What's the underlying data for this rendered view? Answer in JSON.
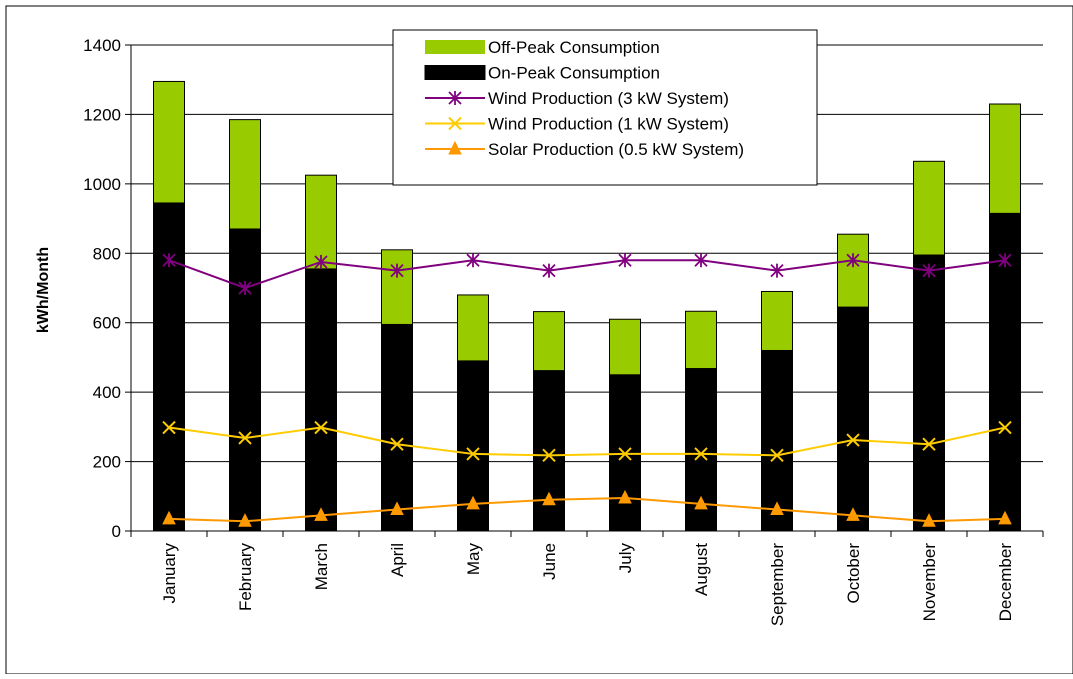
{
  "chart_data": {
    "type": "bar",
    "stacked": true,
    "title": "",
    "xlabel": "",
    "ylabel": "kWh/Month",
    "ylim": [
      0,
      1400
    ],
    "yticks": [
      0,
      200,
      400,
      600,
      800,
      1000,
      1200,
      1400
    ],
    "grid": "horizontal",
    "legend_position": "top-center",
    "categories": [
      "January",
      "February",
      "March",
      "April",
      "May",
      "June",
      "July",
      "August",
      "September",
      "October",
      "November",
      "December"
    ],
    "series": [
      {
        "name": "Off-Peak Consumption",
        "kind": "bar-stacked",
        "color": "#99cc00",
        "values": [
          350,
          315,
          270,
          215,
          190,
          170,
          160,
          165,
          170,
          210,
          270,
          315
        ]
      },
      {
        "name": "On-Peak Consumption",
        "kind": "bar-stacked",
        "color": "#000000",
        "values": [
          945,
          870,
          755,
          595,
          490,
          462,
          450,
          468,
          520,
          645,
          795,
          915
        ]
      },
      {
        "name": "Wind Production (3 kW System)",
        "kind": "line",
        "marker": "asterisk",
        "color": "#800080",
        "values": [
          780,
          700,
          775,
          750,
          780,
          750,
          780,
          780,
          750,
          780,
          750,
          780
        ]
      },
      {
        "name": "Wind Production (1 kW System)",
        "kind": "line",
        "marker": "x",
        "color": "#ffcc00",
        "values": [
          298,
          268,
          298,
          250,
          222,
          218,
          222,
          222,
          218,
          262,
          250,
          298
        ]
      },
      {
        "name": "Solar Production (0.5 kW System)",
        "kind": "line",
        "marker": "triangle",
        "color": "#ff9900",
        "values": [
          35,
          28,
          45,
          62,
          78,
          90,
          95,
          78,
          62,
          45,
          28,
          35
        ]
      }
    ]
  }
}
